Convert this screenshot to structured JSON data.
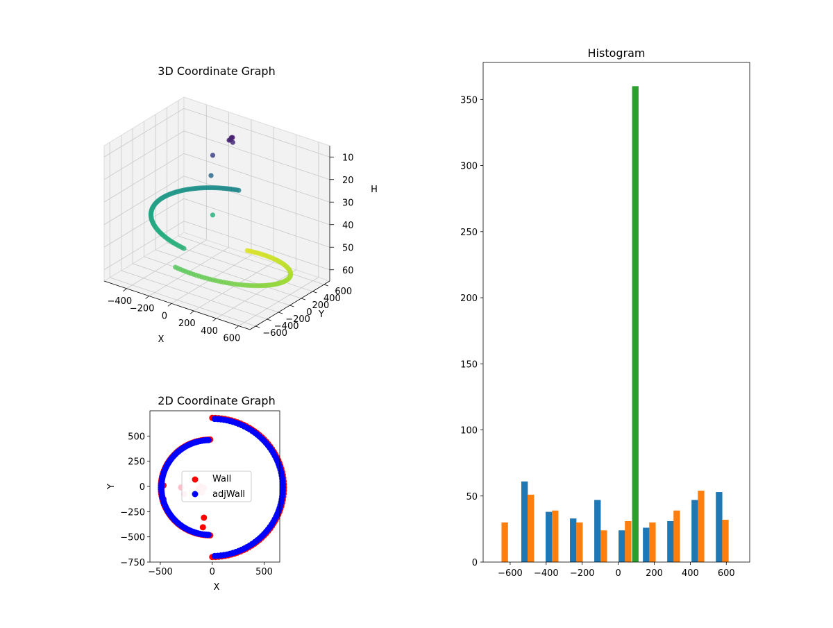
{
  "chart_data": [
    {
      "type": "scatter3d",
      "title": "3D Coordinate Graph",
      "xlabel": "X",
      "ylabel": "Y",
      "zlabel": "H",
      "xlim": [
        -600,
        700
      ],
      "ylim": [
        -700,
        700
      ],
      "zlim": [
        5,
        65
      ],
      "x_ticks": [
        -400,
        -200,
        0,
        200,
        400,
        600
      ],
      "y_ticks": [
        -600,
        -400,
        -200,
        0,
        200,
        400,
        600
      ],
      "z_ticks": [
        10,
        20,
        30,
        40,
        50,
        60
      ],
      "z_inverted": true,
      "grid": true,
      "colormap": "viridis",
      "series": [
        {
          "points_x": [
            -50,
            -45,
            -55,
            -60,
            -40,
            -140,
            -150,
            -130
          ],
          "points_y": [
            450,
            460,
            440,
            430,
            455,
            300,
            290,
            280
          ],
          "points_h": [
            10,
            10,
            11,
            11,
            12,
            17,
            26,
            43
          ]
        },
        {
          "arc": "inner half-ring",
          "radius": 480,
          "center": [
            0,
            0
          ],
          "angle_range_deg": [
            90,
            270
          ],
          "h_range": [
            33,
            44
          ]
        },
        {
          "arc": "outer half-ring",
          "radius": 630,
          "center": [
            0,
            0
          ],
          "angle_range_deg": [
            -90,
            90
          ],
          "h_range": [
            50,
            62
          ]
        }
      ]
    },
    {
      "type": "scatter",
      "title": "2D Coordinate Graph",
      "xlabel": "X",
      "ylabel": "Y",
      "xlim": [
        -600,
        650
      ],
      "ylim": [
        -750,
        750
      ],
      "x_ticks": [
        -500,
        0,
        500
      ],
      "y_ticks": [
        -750,
        -500,
        -250,
        0,
        250,
        500
      ],
      "legend": "center",
      "series": [
        {
          "name": "Wall",
          "color": "#ff0000",
          "arcs": [
            {
              "radius": 475,
              "angle_range_deg": [
                90,
                270
              ],
              "center": [
                -20,
                -10
              ]
            },
            {
              "radius": 690,
              "angle_range_deg": [
                -90,
                90
              ],
              "center": [
                0,
                -10
              ]
            }
          ],
          "extra_points": [
            {
              "x": -480,
              "y": 0
            },
            {
              "x": -470,
              "y": 10
            },
            {
              "x": -470,
              "y": -125
            },
            {
              "x": -80,
              "y": -310
            },
            {
              "x": -90,
              "y": -405
            }
          ]
        },
        {
          "name": "adjWall",
          "color": "#0000ff",
          "arcs": [
            {
              "radius": 470,
              "angle_range_deg": [
                92,
                268
              ],
              "center": [
                -20,
                -10
              ]
            },
            {
              "radius": 680,
              "angle_range_deg": [
                -88,
                88
              ],
              "center": [
                0,
                -10
              ]
            }
          ]
        },
        {
          "color": "#ffc0cb",
          "points": [
            {
              "x": -300,
              "y": -10
            },
            {
              "x": -270,
              "y": -75
            },
            {
              "x": -130,
              "y": -20
            },
            {
              "x": -110,
              "y": 0
            },
            {
              "x": -80,
              "y": -15
            },
            {
              "x": -100,
              "y": -60
            }
          ]
        }
      ]
    },
    {
      "type": "bar",
      "title": "Histogram",
      "xlim": [
        -750,
        730
      ],
      "ylim": [
        0,
        378
      ],
      "x_ticks": [
        -600,
        -400,
        -200,
        0,
        200,
        400,
        600
      ],
      "y_ticks": [
        0,
        50,
        100,
        150,
        200,
        250,
        300,
        350
      ],
      "series": [
        {
          "color": "#1f77b4",
          "bars": [
            {
              "x": -520,
              "value": 0
            },
            {
              "x": -520,
              "value": 61
            },
            {
              "x": -385,
              "value": 38
            },
            {
              "x": -250,
              "value": 33
            },
            {
              "x": -115,
              "value": 47
            },
            {
              "x": 20,
              "value": 24
            },
            {
              "x": 155,
              "value": 26
            },
            {
              "x": 290,
              "value": 31
            },
            {
              "x": 425,
              "value": 47
            },
            {
              "x": 560,
              "value": 53
            }
          ]
        },
        {
          "color": "#ff7f0e",
          "bars": [
            {
              "x": -630,
              "value": 30
            },
            {
              "x": -485,
              "value": 51
            },
            {
              "x": -350,
              "value": 39
            },
            {
              "x": -215,
              "value": 30
            },
            {
              "x": -80,
              "value": 24
            },
            {
              "x": 55,
              "value": 31
            },
            {
              "x": 190,
              "value": 30
            },
            {
              "x": 325,
              "value": 39
            },
            {
              "x": 460,
              "value": 54
            },
            {
              "x": 595,
              "value": 32
            }
          ]
        },
        {
          "color": "#2ca02c",
          "bars": [
            {
              "x": 95,
              "value": 360
            }
          ]
        }
      ]
    }
  ]
}
